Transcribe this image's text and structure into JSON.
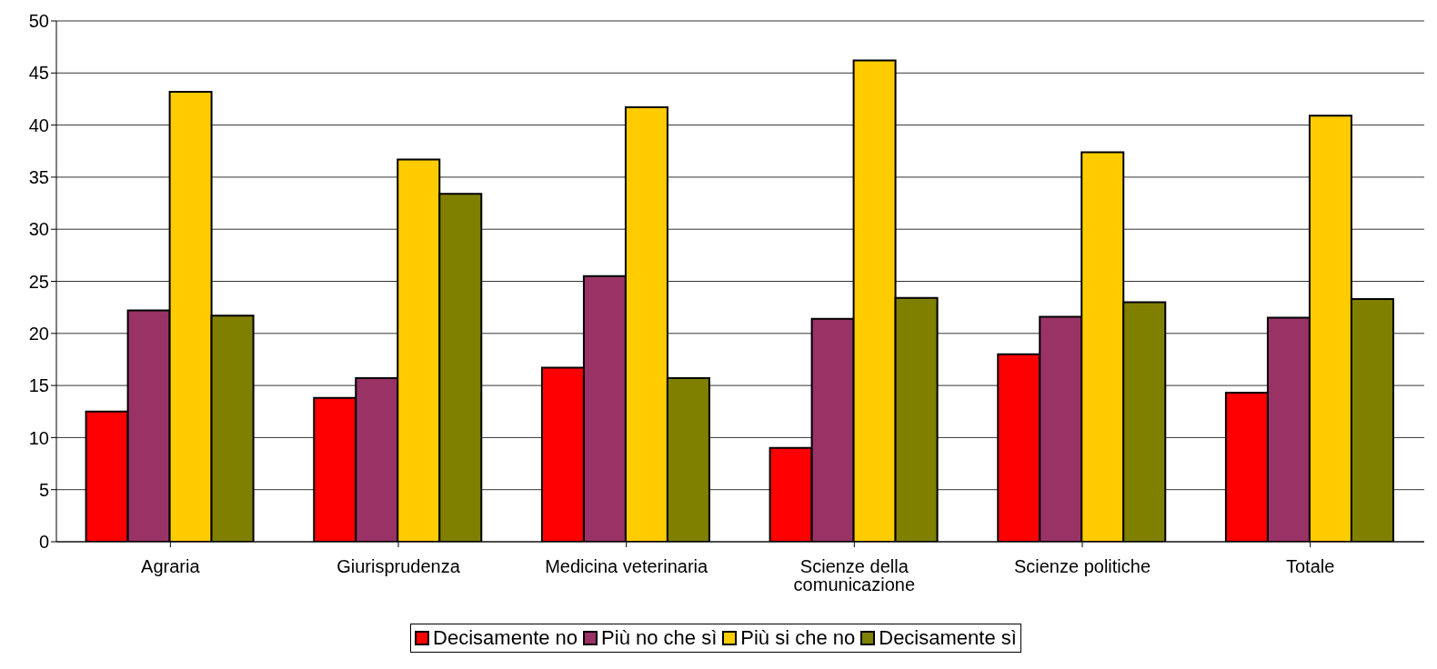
{
  "chart_data": {
    "type": "bar",
    "categories": [
      "Agraria",
      "Giurisprudenza",
      "Medicina veterinaria",
      "Scienze della comunicazione",
      "Scienze politiche",
      "Totale"
    ],
    "series": [
      {
        "name": "Decisamente no",
        "color": "#ff0000",
        "values": [
          12.5,
          13.8,
          16.7,
          9.0,
          18.0,
          14.3
        ]
      },
      {
        "name": "Più no che sì",
        "color": "#993366",
        "values": [
          22.2,
          15.7,
          25.5,
          21.4,
          21.6,
          21.5
        ]
      },
      {
        "name": "Più si che no",
        "color": "#ffcc00",
        "values": [
          43.2,
          36.7,
          41.7,
          46.2,
          37.4,
          40.9
        ]
      },
      {
        "name": "Decisamente sì",
        "color": "#808000",
        "values": [
          21.7,
          33.4,
          15.7,
          23.4,
          23.0,
          23.3
        ]
      }
    ],
    "ylim": [
      0,
      50
    ],
    "yticks": [
      0,
      5,
      10,
      15,
      20,
      25,
      30,
      35,
      40,
      45,
      50
    ],
    "grid": "y",
    "legend": "bottom"
  }
}
